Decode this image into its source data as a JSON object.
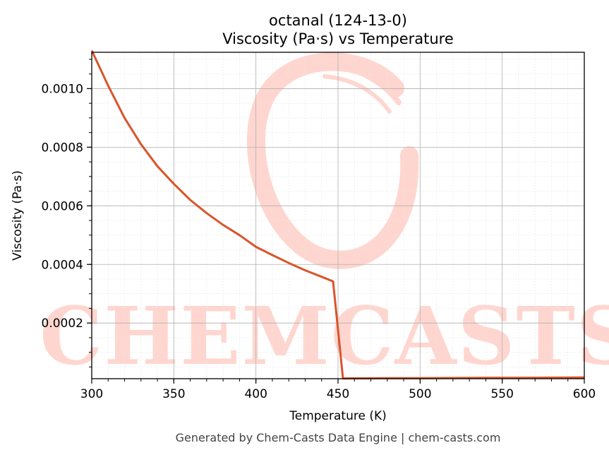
{
  "chart_data": {
    "type": "line",
    "title_line1": "octanal (124-13-0)",
    "title_line2": "Viscosity (Pa·s) vs Temperature",
    "xlabel": "Temperature (K)",
    "ylabel": "Viscosity (Pa·s)",
    "xlim": [
      300,
      600
    ],
    "ylim": [
      1e-05,
      0.001124
    ],
    "x_ticks": [
      300,
      350,
      400,
      450,
      500,
      550,
      600
    ],
    "x_tick_labels": [
      "300",
      "350",
      "400",
      "450",
      "500",
      "550",
      "600"
    ],
    "y_ticks": [
      0.0002,
      0.0004,
      0.0006,
      0.0008,
      0.001
    ],
    "y_tick_labels": [
      "0.0002",
      "0.0004",
      "0.0006",
      "0.0008",
      "0.0010"
    ],
    "grid": true,
    "minor_grid": true,
    "line_color": "#d9552b",
    "series": [
      {
        "x": [
          300,
          310,
          320,
          330,
          340,
          350,
          360,
          370,
          380,
          390,
          400,
          410,
          420,
          430,
          440,
          447,
          453,
          460,
          480,
          500,
          520,
          540,
          560,
          580,
          600
        ],
        "y": [
          0.00113,
          0.00101,
          0.0009,
          0.00081,
          0.000735,
          0.000675,
          0.00062,
          0.000575,
          0.000535,
          0.0005,
          0.00046,
          0.000432,
          0.000405,
          0.00038,
          0.000358,
          0.000342,
          1.1e-05,
          1.12e-05,
          1.16e-05,
          1.2e-05,
          1.24e-05,
          1.28e-05,
          1.32e-05,
          1.36e-05,
          1.4e-05
        ]
      }
    ]
  },
  "watermark": {
    "text": "CHEMCASTS",
    "color": "#ffd6cf"
  },
  "footer": "Generated by Chem-Casts Data Engine | chem-casts.com"
}
